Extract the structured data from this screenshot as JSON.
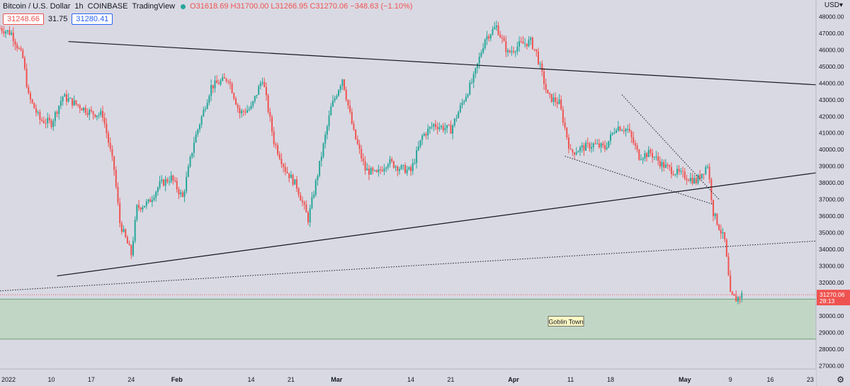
{
  "header": {
    "symbol": "Bitcoin / U.S. Dollar",
    "interval": "1h",
    "exchange": "COINBASE",
    "brand": "TradingView",
    "ohlc": "O31618.69 H31700.00 L31266.95 C31270.06 −348.63 (−1.10%)",
    "bid": "31248.66",
    "spread": "31.75",
    "ask": "31280.41"
  },
  "axis": {
    "currency": "USD",
    "currency_icon": "chevron-down-icon",
    "settings_icon": "gear-icon"
  },
  "colors": {
    "background": "#d9d9e3",
    "up": "#26a69a",
    "down": "#ef5350",
    "zone_fill": "#c2d6c6",
    "zone_line": "#6aa276",
    "trend_line": "#131722"
  },
  "price_tag": {
    "price": "31270.06",
    "countdown": "28:13"
  },
  "chart_data": {
    "type": "candlestick",
    "title": "",
    "ylim": [
      26800,
      49000
    ],
    "xlim": [
      "2022-01-01",
      "2022-05-24"
    ],
    "y_ticks": [
      27000,
      28000,
      29000,
      30000,
      31000,
      32000,
      33000,
      34000,
      35000,
      36000,
      37000,
      38000,
      39000,
      40000,
      41000,
      42000,
      43000,
      44000,
      45000,
      46000,
      47000,
      48000
    ],
    "y_tick_labels": [
      "27000.00",
      "28000.00",
      "29000.00",
      "30000.00",
      "31000.00",
      "32000.00",
      "33000.00",
      "34000.00",
      "35000.00",
      "36000.00",
      "37000.00",
      "38000.00",
      "39000.00",
      "40000.00",
      "41000.00",
      "42000.00",
      "43000.00",
      "44000.00",
      "45000.00",
      "46000.00",
      "47000.00",
      "48000.00"
    ],
    "x_ticks": [
      {
        "date": "2022-01-01",
        "label": "2022"
      },
      {
        "date": "2022-01-10",
        "label": "10"
      },
      {
        "date": "2022-01-17",
        "label": "17"
      },
      {
        "date": "2022-01-24",
        "label": "24"
      },
      {
        "date": "2022-02-01",
        "label": "Feb"
      },
      {
        "date": "2022-02-14",
        "label": "14"
      },
      {
        "date": "2022-02-21",
        "label": "21"
      },
      {
        "date": "2022-03-01",
        "label": "Mar"
      },
      {
        "date": "2022-03-14",
        "label": "14"
      },
      {
        "date": "2022-03-21",
        "label": "21"
      },
      {
        "date": "2022-04-01",
        "label": "Apr"
      },
      {
        "date": "2022-04-11",
        "label": "11"
      },
      {
        "date": "2022-04-18",
        "label": "18"
      },
      {
        "date": "2022-05-01",
        "label": "May"
      },
      {
        "date": "2022-05-09",
        "label": "9"
      },
      {
        "date": "2022-05-16",
        "label": "16"
      },
      {
        "date": "2022-05-23",
        "label": "23"
      }
    ],
    "price_path": [
      [
        "2022-01-01",
        47300
      ],
      [
        "2022-01-03",
        47000
      ],
      [
        "2022-01-05",
        45500
      ],
      [
        "2022-01-06",
        43200
      ],
      [
        "2022-01-08",
        41800
      ],
      [
        "2022-01-10",
        41600
      ],
      [
        "2022-01-12",
        43200
      ],
      [
        "2022-01-14",
        42800
      ],
      [
        "2022-01-17",
        42200
      ],
      [
        "2022-01-19",
        42100
      ],
      [
        "2022-01-21",
        38800
      ],
      [
        "2022-01-22",
        35600
      ],
      [
        "2022-01-24",
        33700
      ],
      [
        "2022-01-25",
        36500
      ],
      [
        "2022-01-27",
        36800
      ],
      [
        "2022-01-29",
        37900
      ],
      [
        "2022-01-31",
        38300
      ],
      [
        "2022-02-02",
        37100
      ],
      [
        "2022-02-04",
        40500
      ],
      [
        "2022-02-07",
        43800
      ],
      [
        "2022-02-10",
        44300
      ],
      [
        "2022-02-12",
        42200
      ],
      [
        "2022-02-14",
        42500
      ],
      [
        "2022-02-16",
        44300
      ],
      [
        "2022-02-18",
        40500
      ],
      [
        "2022-02-20",
        38800
      ],
      [
        "2022-02-22",
        37800
      ],
      [
        "2022-02-24",
        35800
      ],
      [
        "2022-02-26",
        39100
      ],
      [
        "2022-02-28",
        42500
      ],
      [
        "2022-03-02",
        44300
      ],
      [
        "2022-03-04",
        41000
      ],
      [
        "2022-03-06",
        38800
      ],
      [
        "2022-03-08",
        38500
      ],
      [
        "2022-03-10",
        39300
      ],
      [
        "2022-03-12",
        38900
      ],
      [
        "2022-03-14",
        38700
      ],
      [
        "2022-03-16",
        40800
      ],
      [
        "2022-03-18",
        41500
      ],
      [
        "2022-03-21",
        41200
      ],
      [
        "2022-03-23",
        42800
      ],
      [
        "2022-03-25",
        44300
      ],
      [
        "2022-03-27",
        46700
      ],
      [
        "2022-03-29",
        47400
      ],
      [
        "2022-03-31",
        45800
      ],
      [
        "2022-04-02",
        46300
      ],
      [
        "2022-04-04",
        46500
      ],
      [
        "2022-04-05",
        45800
      ],
      [
        "2022-04-07",
        43200
      ],
      [
        "2022-04-09",
        42800
      ],
      [
        "2022-04-11",
        39800
      ],
      [
        "2022-04-13",
        40100
      ],
      [
        "2022-04-15",
        40300
      ],
      [
        "2022-04-17",
        40100
      ],
      [
        "2022-04-19",
        41400
      ],
      [
        "2022-04-21",
        41200
      ],
      [
        "2022-04-23",
        39600
      ],
      [
        "2022-04-25",
        39800
      ],
      [
        "2022-04-27",
        39100
      ],
      [
        "2022-04-29",
        38700
      ],
      [
        "2022-05-01",
        38400
      ],
      [
        "2022-05-03",
        38100
      ],
      [
        "2022-05-05",
        39100
      ],
      [
        "2022-05-06",
        36200
      ],
      [
        "2022-05-08",
        34500
      ],
      [
        "2022-05-09",
        31200
      ],
      [
        "2022-05-10",
        31000
      ],
      [
        "2022-05-11",
        31270
      ]
    ],
    "trendlines": [
      {
        "style": "solid",
        "from": [
          "2022-01-13",
          46500
        ],
        "to": [
          "2022-05-24",
          43900
        ]
      },
      {
        "style": "solid",
        "from": [
          "2022-01-11",
          32400
        ],
        "to": [
          "2022-05-24",
          38600
        ]
      },
      {
        "style": "dotted",
        "from": [
          "2022-01-01",
          31500
        ],
        "to": [
          "2022-05-24",
          34500
        ]
      },
      {
        "style": "dotted",
        "from": [
          "2022-04-10",
          39600
        ],
        "to": [
          "2022-05-06",
          36700
        ]
      },
      {
        "style": "dotted",
        "from": [
          "2022-04-20",
          43300
        ],
        "to": [
          "2022-05-07",
          37000
        ]
      }
    ],
    "zones": [
      {
        "label": "Goblin Town",
        "from": 28600,
        "to": 31000
      }
    ]
  }
}
